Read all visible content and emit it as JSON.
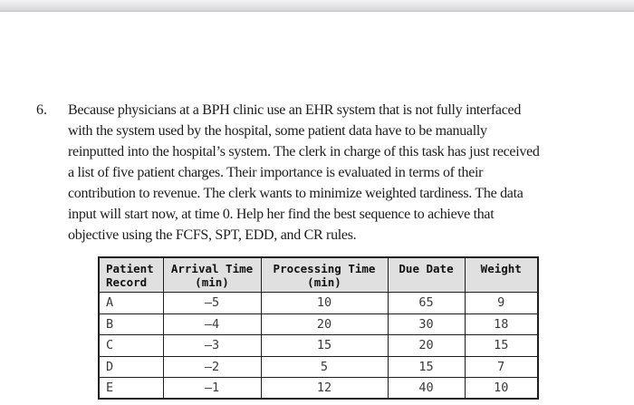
{
  "window": {
    "chrome_bar": "",
    "chrome_bar_color_top": "#f4f4f6",
    "chrome_bar_color_bottom": "#d4d4da"
  },
  "problem": {
    "number": "6.",
    "lines": [
      "Because physicians at a BPH clinic use an EHR system that is not fully interfaced",
      "with the system used by the hospital, some patient data have to be manually",
      "reinputted into the hospital’s system. The clerk in charge of this task has just received",
      "a list of five patient charges. Their importance is evaluated in terms of their",
      "contribution to revenue. The clerk wants to minimize weighted tardiness. The data",
      "input will start now, at time 0. Help her find the best sequence to achieve that",
      "objective using the FCFS, SPT, EDD, and CR rules."
    ]
  },
  "table": {
    "headers": [
      {
        "line1": "Patient",
        "line2": "Record"
      },
      {
        "line1": "Arrival Time",
        "line2": "(min)"
      },
      {
        "line1": "Processing Time",
        "line2": "(min)"
      },
      {
        "line1": "Due Date",
        "line2": ""
      },
      {
        "line1": "Weight",
        "line2": ""
      }
    ],
    "rows": [
      {
        "patient": "A",
        "arrival": "–5",
        "processing": "10",
        "due": "65",
        "weight": "9"
      },
      {
        "patient": "B",
        "arrival": "–4",
        "processing": "20",
        "due": "30",
        "weight": "18"
      },
      {
        "patient": "C",
        "arrival": "–3",
        "processing": "15",
        "due": "20",
        "weight": "15"
      },
      {
        "patient": "D",
        "arrival": "–2",
        "processing": "5",
        "due": "15",
        "weight": "7"
      },
      {
        "patient": "E",
        "arrival": "–1",
        "processing": "12",
        "due": "40",
        "weight": "10"
      }
    ],
    "header_bg": "#e0e0e0",
    "border_color": "#1f1f1f"
  },
  "chart_data": {
    "type": "table",
    "title": "Patient charges scheduling data",
    "columns": [
      "Patient Record",
      "Arrival Time (min)",
      "Processing Time (min)",
      "Due Date",
      "Weight"
    ],
    "rows": [
      [
        "A",
        -5,
        10,
        65,
        9
      ],
      [
        "B",
        -4,
        20,
        30,
        18
      ],
      [
        "C",
        -3,
        15,
        20,
        15
      ],
      [
        "D",
        -2,
        5,
        15,
        7
      ],
      [
        "E",
        -1,
        12,
        40,
        10
      ]
    ]
  }
}
